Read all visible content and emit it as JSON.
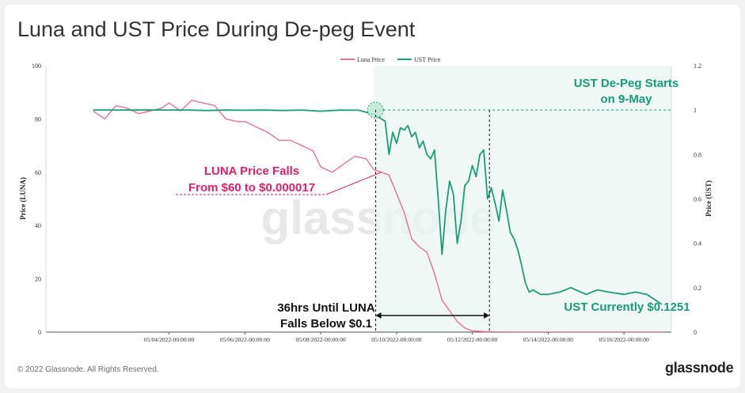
{
  "page": {
    "title": "Luna and UST Price During De-peg Event",
    "copyright": "© 2022 Glassnode. All Rights Reserved.",
    "brand": "glassnode",
    "watermark": "glassnode"
  },
  "colors": {
    "luna": "#e6738f",
    "ust": "#1b9e77",
    "annotation_pink": "#e0206b",
    "annotation_green": "#1a9a7a",
    "annotation_black": "#111111"
  },
  "annotations": {
    "luna_falls_line1": "LUNA Price Falls",
    "luna_falls_line2": "From $60 to $0.000017",
    "ust_depeg_line1": "UST De-Peg Starts",
    "ust_depeg_line2": "on 9-May",
    "hours_line1": "36hrs Until LUNA",
    "hours_line2": "Falls Below $0.1",
    "ust_current": "UST Currently $0.1251"
  },
  "chart_data": {
    "type": "line",
    "title": "Luna and UST Price During De-peg Event",
    "xlabel": "",
    "ylabel": "Price (LUNA)",
    "y2label": "Price (UST)",
    "ylim": [
      0,
      100
    ],
    "y2lim": [
      0,
      1.2
    ],
    "legend_position": "top-center",
    "grid": false,
    "x_tick_labels": [
      "05/04/2022-00:00:00",
      "05/06/2022-00:00:00",
      "05/08/2022-00:00:00",
      "05/10/2022-00:00:00",
      "05/12/2022-00:00:00",
      "05/14/2022-00:00:00",
      "05/16/2022-00:00:00"
    ],
    "y_tick_labels": [
      "0",
      "20",
      "40",
      "60",
      "80",
      "100"
    ],
    "y2_tick_labels": [
      "0",
      "0.2",
      "0.4",
      "0.6",
      "0.8",
      "1",
      "1.2"
    ],
    "series": [
      {
        "name": "Luna Price",
        "axis": "left",
        "x": [
          2.0,
          2.3,
          2.6,
          2.9,
          3.2,
          3.5,
          3.8,
          4.0,
          4.3,
          4.6,
          4.9,
          5.2,
          5.5,
          5.8,
          6.0,
          6.3,
          6.6,
          6.9,
          7.2,
          7.5,
          7.8,
          8.0,
          8.3,
          8.6,
          8.9,
          9.2,
          9.4,
          9.6,
          9.8,
          10.0,
          10.2,
          10.4,
          10.6,
          10.8,
          11.0,
          11.2,
          11.4,
          11.6,
          11.8,
          12.0,
          12.3,
          12.6,
          13.0,
          13.5,
          14.0,
          14.5,
          15.0,
          15.5,
          16.0,
          16.5,
          17.0
        ],
        "values": [
          83,
          80,
          85,
          84,
          82,
          83,
          84,
          86,
          83,
          87,
          86,
          85,
          80,
          79,
          79,
          77,
          75,
          72,
          72,
          70,
          68,
          62,
          60,
          63,
          66,
          65,
          61,
          60,
          59,
          52,
          45,
          35,
          32,
          30,
          22,
          12,
          8,
          4,
          1.5,
          0.5,
          0.2,
          0.05,
          0.02,
          0.01,
          0.005,
          0.002,
          0.001,
          0.0005,
          0.0002,
          0.0001,
          1.7e-05
        ]
      },
      {
        "name": "UST Price",
        "axis": "right",
        "x": [
          2.0,
          2.5,
          3.0,
          3.5,
          4.0,
          4.5,
          5.0,
          5.5,
          6.0,
          6.5,
          7.0,
          7.5,
          8.0,
          8.5,
          9.0,
          9.2,
          9.4,
          9.6,
          9.7,
          9.8,
          9.9,
          10.0,
          10.1,
          10.2,
          10.3,
          10.4,
          10.5,
          10.6,
          10.7,
          10.8,
          10.9,
          11.0,
          11.1,
          11.2,
          11.3,
          11.4,
          11.5,
          11.6,
          11.7,
          11.8,
          11.9,
          12.0,
          12.1,
          12.2,
          12.3,
          12.4,
          12.5,
          12.6,
          12.7,
          12.8,
          12.9,
          13.0,
          13.1,
          13.2,
          13.3,
          13.4,
          13.5,
          13.6,
          13.8,
          14.0,
          14.3,
          14.6,
          15.0,
          15.3,
          15.6,
          16.0,
          16.3,
          16.6,
          17.0
        ],
        "values": [
          1.0,
          1.0,
          1.0,
          1.0,
          1.0,
          1.0,
          0.998,
          1.0,
          0.999,
          1.0,
          0.998,
          1.0,
          0.995,
          1.0,
          0.999,
          0.99,
          0.98,
          0.96,
          0.95,
          0.8,
          0.9,
          0.85,
          0.92,
          0.91,
          0.93,
          0.88,
          0.9,
          0.83,
          0.86,
          0.8,
          0.78,
          0.82,
          0.6,
          0.35,
          0.55,
          0.68,
          0.62,
          0.4,
          0.5,
          0.66,
          0.68,
          0.75,
          0.7,
          0.8,
          0.82,
          0.6,
          0.65,
          0.58,
          0.5,
          0.64,
          0.55,
          0.45,
          0.42,
          0.37,
          0.3,
          0.22,
          0.18,
          0.19,
          0.17,
          0.17,
          0.18,
          0.2,
          0.17,
          0.19,
          0.18,
          0.17,
          0.18,
          0.17,
          0.1251
        ]
      }
    ]
  }
}
